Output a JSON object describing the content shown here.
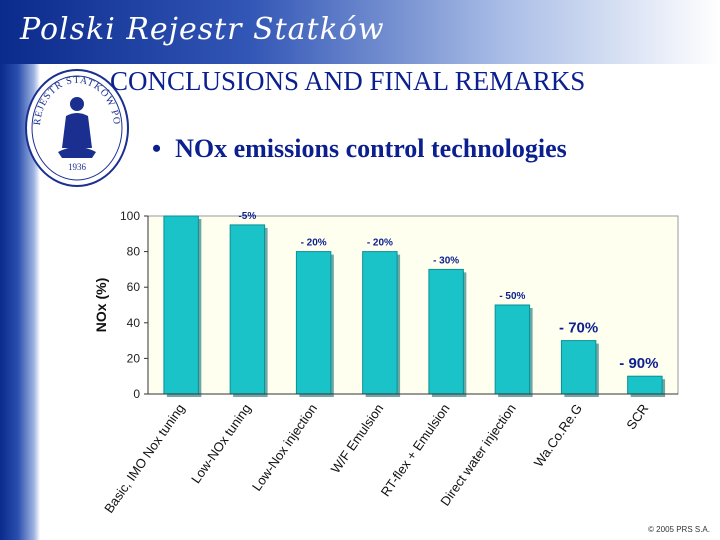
{
  "header": {
    "brand": "Polski Rejestr Statków"
  },
  "seal": {
    "ring_text": "REJESTR STATKÓW POLSKI",
    "year": "1936"
  },
  "slide": {
    "title": "CONCLUSIONS AND FINAL REMARKS",
    "bullet_symbol": "•",
    "bullet": "NOx emissions control technologies"
  },
  "footer": {
    "copyright": "© 2005 PRS S.A."
  },
  "colors": {
    "brand_blue": "#0b1f8f",
    "bar": "#19c3c8",
    "plot_bg": "#fffff0"
  },
  "chart_data": {
    "type": "bar",
    "title": "",
    "xlabel": "",
    "ylabel": "NOx (%)",
    "ylim": [
      0,
      100
    ],
    "yticks": [
      0,
      20,
      40,
      60,
      80,
      100
    ],
    "categories": [
      "Basic, IMO Nox tuning",
      "Low-NOx tuning",
      "Low-Nox injection",
      "W/F Emulsion",
      "RT-flex + Emulsion",
      "Direct water injection",
      "Wa.Co.Re.G",
      "SCR"
    ],
    "values": [
      100,
      95,
      80,
      80,
      70,
      50,
      30,
      10
    ],
    "data_labels": [
      "",
      "-5%",
      "- 20%",
      "- 20%",
      "- 30%",
      "- 50%",
      "- 70%",
      "- 90%"
    ],
    "grid": false,
    "legend": "none"
  }
}
